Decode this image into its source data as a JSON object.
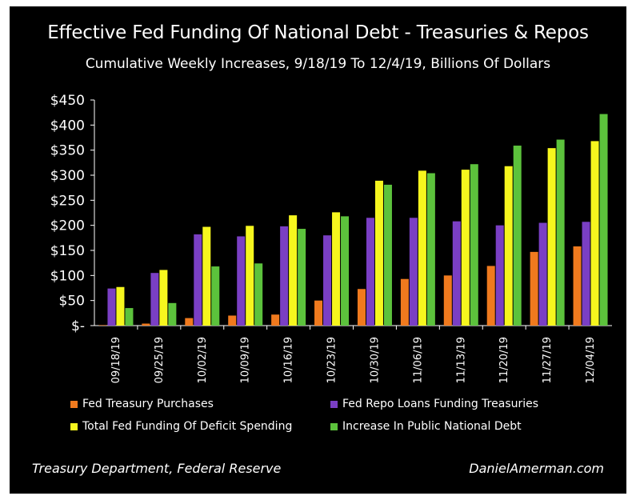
{
  "chart_data": {
    "type": "bar",
    "title": "Effective Fed Funding Of National Debt - Treasuries & Repos",
    "subtitle": "Cumulative Weekly Increases, 9/18/19 To 12/4/19, Billions Of Dollars",
    "categories": [
      "09/18/19",
      "09/25/19",
      "10/02/19",
      "10/09/19",
      "10/16/19",
      "10/23/19",
      "10/30/19",
      "11/06/19",
      "11/13/19",
      "11/20/19",
      "11/27/19",
      "12/04/19"
    ],
    "y_ticks": [
      "$-",
      "$50",
      "$100",
      "$150",
      "$200",
      "$250",
      "$300",
      "$350",
      "$400",
      "$450"
    ],
    "ylim": [
      0,
      450
    ],
    "grid": false,
    "legend_position": "bottom",
    "series": [
      {
        "name": "Fed Treasury Purchases",
        "color": "#f07a1e",
        "values": [
          1,
          4,
          15,
          20,
          22,
          50,
          73,
          93,
          100,
          119,
          147,
          158
        ]
      },
      {
        "name": "Fed Repo Loans Funding Treasuries",
        "color": "#7a3fc4",
        "values": [
          74,
          105,
          182,
          178,
          198,
          180,
          215,
          215,
          208,
          200,
          205,
          207
        ]
      },
      {
        "name": "Total Fed Funding Of Deficit Spending",
        "color": "#f6f61e",
        "values": [
          77,
          111,
          197,
          199,
          220,
          226,
          289,
          309,
          311,
          318,
          354,
          368
        ]
      },
      {
        "name": "Increase In Public National Debt",
        "color": "#5cc23c",
        "values": [
          35,
          45,
          118,
          124,
          193,
          218,
          281,
          304,
          322,
          359,
          371,
          422
        ]
      }
    ]
  },
  "footer": {
    "source": "Treasury Department, Federal Reserve",
    "site": "DanielAmerman.com"
  }
}
